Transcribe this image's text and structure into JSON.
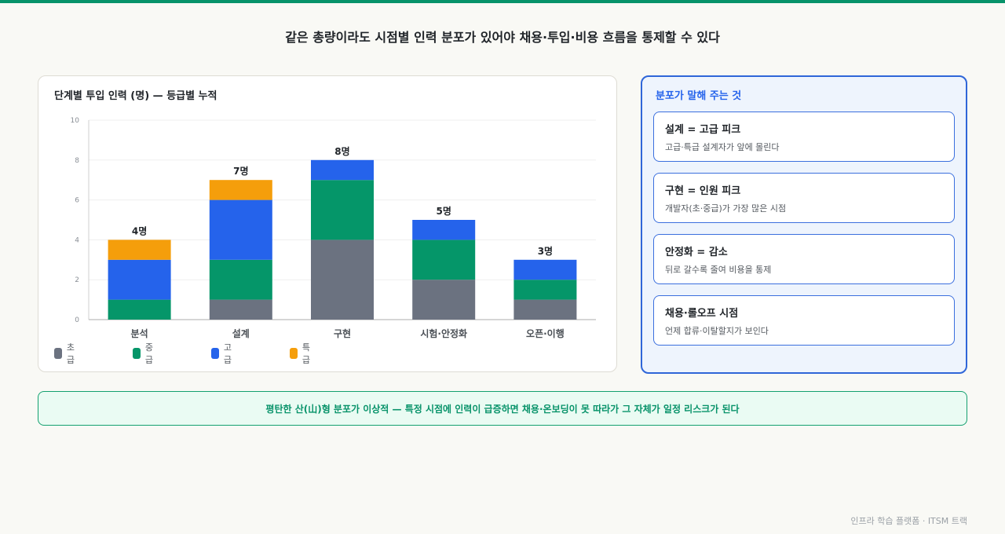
{
  "page": {
    "title": "같은 총량이라도 시점별 인력 분포가 있어야 채용·투입·비용 흐름을 통제할 수 있다",
    "footer": "인프라 학습 플랫폼 · ITSM 트랙",
    "accent_color": "#08936a"
  },
  "chart_data": {
    "type": "bar",
    "stacked": true,
    "title": "단계별 투입 인력 (명) — 등급별 누적",
    "xlabel": "",
    "ylabel": "",
    "ylim": [
      0,
      10
    ],
    "yticks": [
      0,
      2,
      4,
      6,
      8,
      10
    ],
    "grid": true,
    "legend_position": "bottom-left",
    "categories": [
      "분석",
      "설계",
      "구현",
      "시험·안정화",
      "오픈·이행"
    ],
    "series": [
      {
        "name": "초급",
        "color": "#6b7280",
        "values": [
          0,
          1,
          4,
          2,
          1
        ]
      },
      {
        "name": "중급",
        "color": "#059669",
        "values": [
          1,
          2,
          3,
          2,
          1
        ]
      },
      {
        "name": "고급",
        "color": "#2563eb",
        "values": [
          2,
          3,
          1,
          1,
          1
        ]
      },
      {
        "name": "특급",
        "color": "#f59e0b",
        "values": [
          1,
          1,
          0,
          0,
          0
        ]
      }
    ],
    "total_labels": [
      "4명",
      "7명",
      "8명",
      "5명",
      "3명"
    ]
  },
  "insights": {
    "title": "분포가 말해 주는 것",
    "items": [
      {
        "heading": "설계 = 고급 피크",
        "desc": "고급·특급 설계자가 앞에 몰린다"
      },
      {
        "heading": "구현 = 인원 피크",
        "desc": "개발자(초·중급)가 가장 많은 시점"
      },
      {
        "heading": "안정화 = 감소",
        "desc": "뒤로 갈수록 줄여 비용을 통제"
      },
      {
        "heading": "채용·롤오프 시점",
        "desc": "언제 합류·이탈할지가 보인다"
      }
    ]
  },
  "banner": {
    "text": "평탄한 산(山)형 분포가 이상적 — 특정 시점에 인력이 급증하면 채용·온보딩이 못 따라가 그 자체가 일정 리스크가 된다"
  }
}
